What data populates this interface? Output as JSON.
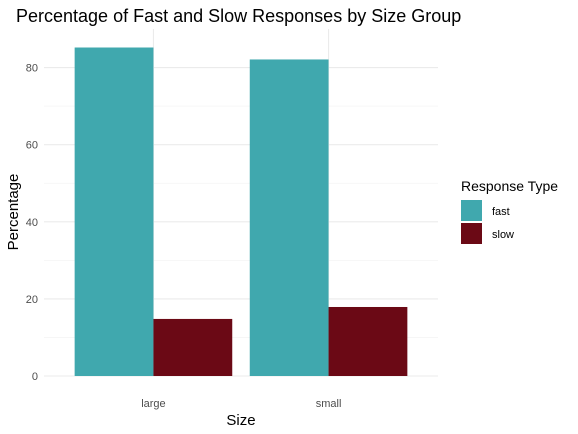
{
  "chart_data": {
    "type": "bar",
    "title": "Percentage of Fast and Slow Responses by Size Group",
    "xlabel": "Size",
    "ylabel": "Percentage",
    "categories": [
      "large",
      "small"
    ],
    "series": [
      {
        "name": "fast",
        "values": [
          85.2,
          82.1
        ],
        "color": "#40a8ae"
      },
      {
        "name": "slow",
        "values": [
          14.8,
          17.9
        ],
        "color": "#6b0915"
      }
    ],
    "ylim": [
      0,
      90
    ],
    "yticks": [
      0,
      20,
      40,
      60,
      80
    ],
    "grid": true,
    "legend": {
      "title": "Response Type",
      "position": "right"
    }
  }
}
